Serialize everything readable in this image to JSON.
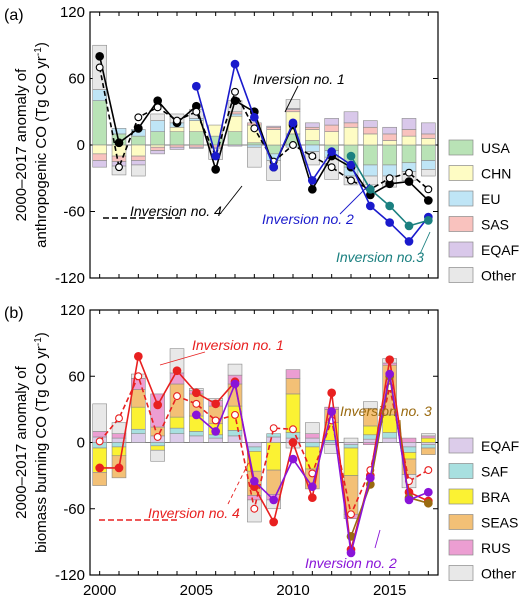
{
  "chart_data": [
    {
      "panel_label": "(a)",
      "type": "bar",
      "stacked": true,
      "ylabel_line1": "2000–2017 anomaly of",
      "ylabel_line2": "anthropogenic CO (Tg CO yr",
      "ylabel_sup": "-1",
      "ylabel_tail": ")",
      "ylim": [
        -120,
        120
      ],
      "yticks": [
        -120,
        -60,
        0,
        60,
        120
      ],
      "x": [
        2000,
        2001,
        2002,
        2003,
        2004,
        2005,
        2006,
        2007,
        2008,
        2009,
        2010,
        2011,
        2012,
        2013,
        2014,
        2015,
        2016,
        2017
      ],
      "bar_series": [
        {
          "name": "USA",
          "color": "#b9e3b6",
          "values": [
            40,
            10,
            8,
            12,
            12,
            12,
            8,
            12,
            2,
            -8,
            10,
            4,
            -5,
            -20,
            -18,
            -18,
            -16,
            -14
          ]
        },
        {
          "name": "CHN",
          "color": "#fefcc4",
          "values": [
            -8,
            -10,
            -10,
            -2,
            4,
            10,
            10,
            14,
            16,
            14,
            20,
            10,
            12,
            16,
            10,
            4,
            8,
            6
          ]
        },
        {
          "name": "EU",
          "color": "#bfe5f6",
          "values": [
            10,
            5,
            6,
            10,
            4,
            2,
            0,
            2,
            -2,
            -6,
            -2,
            -6,
            -6,
            -8,
            -10,
            -10,
            -8,
            -8
          ]
        },
        {
          "name": "SAS",
          "color": "#f9c2be",
          "values": [
            -6,
            -5,
            -4,
            -3,
            -2,
            -2,
            -2,
            2,
            2,
            2,
            2,
            2,
            6,
            4,
            6,
            6,
            6,
            4
          ]
        },
        {
          "name": "EQAF",
          "color": "#d9c8ea",
          "values": [
            -6,
            -4,
            -4,
            -3,
            -2,
            -1,
            -1,
            -1,
            0,
            1,
            1,
            4,
            6,
            10,
            6,
            6,
            10,
            10
          ]
        },
        {
          "name": "Other",
          "color": "#e8e8e8",
          "values": [
            40,
            -8,
            -10,
            6,
            8,
            8,
            -10,
            10,
            -18,
            -18,
            8,
            -12,
            -20,
            -8,
            -8,
            -10,
            -8,
            -6
          ]
        }
      ],
      "line_series": [
        {
          "name": "Inversion no. 1",
          "color": "#000000",
          "filled": true,
          "dashed": false,
          "values": [
            80,
            2,
            15,
            40,
            20,
            35,
            -22,
            40,
            30,
            -20,
            18,
            -40,
            -10,
            -20,
            -45,
            -35,
            -33,
            -50
          ]
        },
        {
          "name": "Inversion no. 4",
          "color": "#000000",
          "filled": false,
          "dashed": true,
          "values": [
            70,
            -20,
            25,
            34,
            22,
            30,
            -10,
            48,
            15,
            -15,
            0,
            -10,
            -20,
            -32,
            -40,
            -30,
            -25,
            -40
          ]
        },
        {
          "name": "Inversion no. 2",
          "color": "#1a1acc",
          "filled": true,
          "dashed": false,
          "values": [
            null,
            null,
            null,
            null,
            null,
            53,
            -10,
            73,
            25,
            -20,
            20,
            -32,
            -6,
            -18,
            -55,
            -70,
            -87,
            -65
          ]
        },
        {
          "name": "Inversion no. 3",
          "color": "#1b8080",
          "filled": true,
          "dashed": false,
          "values": [
            null,
            null,
            null,
            null,
            null,
            null,
            null,
            null,
            null,
            null,
            null,
            null,
            null,
            -10,
            -40,
            -55,
            -73,
            -68
          ]
        }
      ],
      "legend": [
        "USA",
        "CHN",
        "EU",
        "SAS",
        "EQAF",
        "Other"
      ],
      "annotations": [
        "Inversion no. 1",
        "Inversion no. 4",
        "Inversion no. 2",
        "Inversion no.3"
      ]
    },
    {
      "panel_label": "(b)",
      "type": "bar",
      "stacked": true,
      "ylabel_line1": "2000–2017 anomaly of",
      "ylabel_line2": "biomass burning CO (Tg CO yr",
      "ylabel_sup": "-1",
      "ylabel_tail": ")",
      "ylim": [
        -120,
        120
      ],
      "yticks": [
        -120,
        -60,
        0,
        60,
        120
      ],
      "xticks": [
        2000,
        2005,
        2010,
        2015
      ],
      "x": [
        2000,
        2001,
        2002,
        2003,
        2004,
        2005,
        2006,
        2007,
        2008,
        2009,
        2010,
        2011,
        2012,
        2013,
        2014,
        2015,
        2016,
        2017
      ],
      "bar_series": [
        {
          "name": "EQAF",
          "color": "#dcccea",
          "values": [
            5,
            4,
            8,
            6,
            8,
            6,
            4,
            6,
            -4,
            5,
            4,
            4,
            -2,
            -2,
            3,
            4,
            -4,
            -2
          ]
        },
        {
          "name": "SAF",
          "color": "#a8e0e0",
          "values": [
            -5,
            -4,
            4,
            -3,
            5,
            4,
            3,
            5,
            -4,
            3,
            5,
            -4,
            2,
            -3,
            4,
            5,
            -5,
            -3
          ]
        },
        {
          "name": "BRA",
          "color": "#fbf233",
          "values": [
            -22,
            -8,
            20,
            -4,
            10,
            14,
            10,
            22,
            -18,
            -25,
            35,
            -20,
            16,
            -25,
            8,
            16,
            -6,
            4
          ]
        },
        {
          "name": "SEAS",
          "color": "#f3c076",
          "values": [
            -12,
            -20,
            16,
            8,
            30,
            20,
            16,
            20,
            -22,
            -22,
            14,
            -18,
            12,
            -35,
            16,
            45,
            -14,
            -6
          ]
        },
        {
          "name": "RUS",
          "color": "#ec9ed2",
          "values": [
            5,
            4,
            10,
            30,
            10,
            3,
            5,
            8,
            -4,
            -5,
            8,
            4,
            2,
            -4,
            -2,
            2,
            4,
            2
          ]
        },
        {
          "name": "Other",
          "color": "#e8e8e8",
          "values": [
            25,
            10,
            4,
            -10,
            22,
            2,
            2,
            10,
            -20,
            -8,
            -5,
            10,
            -8,
            4,
            6,
            4,
            -12,
            2
          ]
        }
      ],
      "line_series": [
        {
          "name": "Inversion no. 1",
          "color": "#e82020",
          "filled": true,
          "dashed": false,
          "values": [
            -23,
            -23,
            78,
            34,
            65,
            45,
            35,
            55,
            -40,
            -72,
            0,
            -50,
            45,
            -97,
            -30,
            75,
            -45,
            -53
          ]
        },
        {
          "name": "Inversion no. 4",
          "color": "#e82020",
          "filled": false,
          "dashed": true,
          "values": [
            1,
            22,
            60,
            5,
            42,
            35,
            20,
            25,
            -60,
            13,
            12,
            -28,
            20,
            -65,
            -25,
            50,
            -35,
            -25
          ]
        },
        {
          "name": "Inversion no. 3",
          "color": "#9a6a10",
          "filled": true,
          "dashed": false,
          "values": [
            null,
            null,
            null,
            null,
            null,
            null,
            null,
            null,
            null,
            null,
            null,
            null,
            null,
            -85,
            -38,
            60,
            -50,
            -55
          ]
        },
        {
          "name": "Inversion no. 2",
          "color": "#8a14d8",
          "filled": true,
          "dashed": false,
          "values": [
            null,
            null,
            null,
            null,
            null,
            25,
            10,
            53,
            -35,
            -52,
            -15,
            -40,
            28,
            -100,
            -32,
            62,
            -52,
            -45
          ]
        }
      ],
      "legend": [
        "EQAF",
        "SAF",
        "BRA",
        "SEAS",
        "RUS",
        "Other"
      ],
      "annotations": [
        "Inversion no. 1",
        "Inversion no. 3",
        "Inversion no. 4",
        "Inversion no. 2"
      ]
    }
  ]
}
